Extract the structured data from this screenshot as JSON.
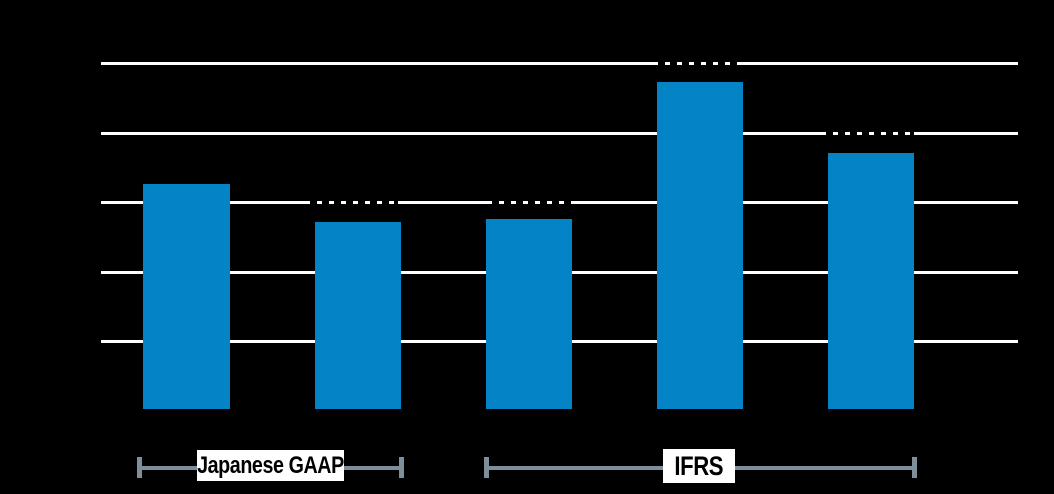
{
  "page": {
    "background_color": "#000000",
    "note": "Chart title, axis tick labels, category labels and bar value labels are rendered black-on-black and are not legible; value labels appear only as notches interrupting the white gridlines above bars 2-5."
  },
  "chart_data": {
    "type": "bar",
    "categories": [
      "",
      "",
      "",
      "",
      ""
    ],
    "values": [
      3.25,
      2.7,
      2.75,
      4.7,
      3.7
    ],
    "value_scale": "gridline units (1 unit per gridline; axis numeric labels not visible)",
    "ylim": [
      0,
      5.3
    ],
    "grid": true,
    "gridline_count": 5,
    "legend_position": "none",
    "groups": [
      {
        "label": "Japanese GAAP",
        "bars": [
          1,
          2
        ]
      },
      {
        "label": "IFRS",
        "bars": [
          3,
          4,
          5
        ]
      }
    ],
    "bar_color": "#0483c6",
    "gridline_color": "#ffffff",
    "bracket_color": "#7d8f9b",
    "group_box_bg": "#ffffff",
    "group_box_text_color": "#000000"
  }
}
